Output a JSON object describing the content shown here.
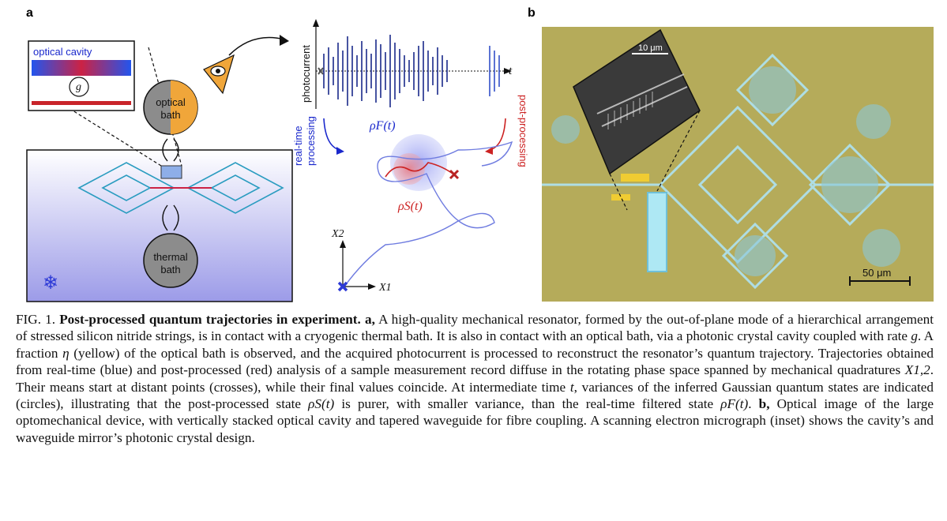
{
  "panel_a": {
    "label": "a",
    "optical_cavity": "optical cavity",
    "coupling_g": "g",
    "optical_bath_line1": "optical",
    "optical_bath_line2": "bath",
    "thermal_bath_line1": "thermal",
    "thermal_bath_line2": "bath",
    "photocurrent_label": "photocurrent",
    "time_axis": "t",
    "realtime_line1": "real-time",
    "realtime_line2": "processing",
    "postprocessing": "post-processing",
    "rho_f": "ρF(t)",
    "rho_s": "ρS(t)",
    "x1": "X1",
    "x2": "X2",
    "snowflake": "❄"
  },
  "panel_b": {
    "label": "b",
    "scalebar_inset": "10 μm",
    "scalebar_main": "50 μm"
  },
  "caption": {
    "fig": "FIG. 1.",
    "title": "Post-processed quantum trajectories in experiment.",
    "a_label": "a,",
    "t1": "A high-quality mechanical resonator, formed by the out-of-plane mode of a hierarchical arrangement of stressed silicon nitride strings, is in contact with a cryogenic thermal bath. It is also in contact with an optical bath, via a photonic crystal cavity coupled with rate",
    "g": "g",
    "t2": ". A fraction",
    "eta": "η",
    "t3": "(yellow) of the optical bath is observed, and the acquired photocurrent is processed to reconstruct the resonator’s quantum trajectory. Trajectories obtained from real-time (blue) and post-processed (red) analysis of a sample measurement record diffuse in the rotating phase space spanned by mechanical quadratures",
    "X12": "X1,2",
    "t4": ". Their means start at distant points (crosses), while their final values coincide. At intermediate time",
    "t": "t",
    "t5": ", variances of the inferred Gaussian quantum states are indicated (circles), illustrating that the post-processed state",
    "rhoS": "ρS(t)",
    "t6": "is purer, with smaller variance, than the real-time filtered state",
    "rhoF": "ρF(t)",
    "t7": ".",
    "b_label": "b,",
    "t8": "Optical image of the large optomechanical device, with vertically stacked optical cavity and tapered waveguide for fibre coupling. A scanning electron micrograph (inset) shows the cavity’s and waveguide mirror’s photonic crystal design."
  }
}
